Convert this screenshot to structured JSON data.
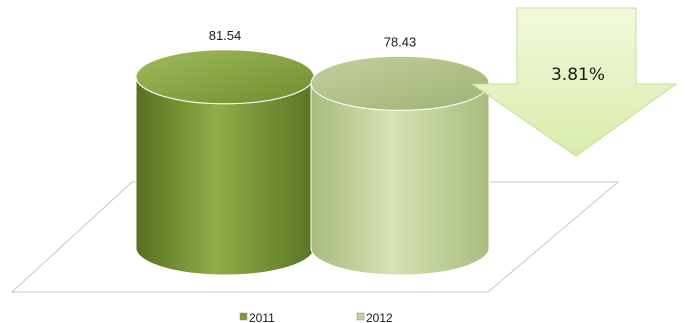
{
  "chart_data": {
    "type": "bar",
    "style": "3d-cylinder",
    "categories": [
      "2011",
      "2012"
    ],
    "values": [
      81.54,
      78.43
    ],
    "value_labels": [
      "81.54",
      "78.43"
    ],
    "series_colors": [
      "#7d9a3c",
      "#c2d29a"
    ],
    "legend": {
      "position": "bottom",
      "entries": [
        "2011",
        "2012"
      ]
    },
    "annotation": {
      "shape": "down-arrow",
      "text": "3.81%",
      "color": "#e6f3c4"
    },
    "title": "",
    "xlabel": "",
    "ylabel": "",
    "ylim": [
      0,
      90
    ],
    "grid": false
  }
}
